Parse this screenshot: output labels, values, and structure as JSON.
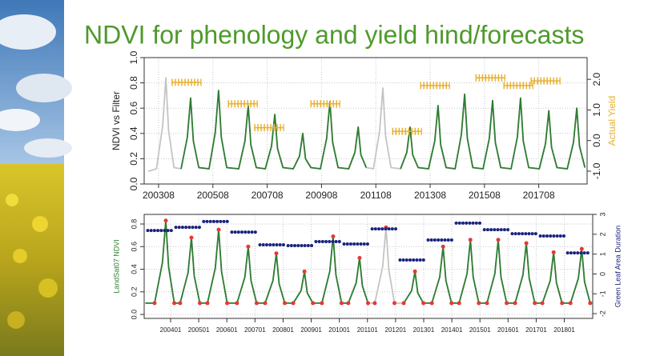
{
  "title": "NDVI for phenology and yield hind/forecasts",
  "chart_data": [
    {
      "type": "line",
      "ylabel": "NDVI vs Filter",
      "y2label": "Actual Yield",
      "ylabel_color": "#222222",
      "y2label_color": "#e8b030",
      "grid": true,
      "xlim": [
        2003.05,
        2019.36
      ],
      "ylim": [
        0,
        1.0
      ],
      "y2lim": [
        -1.42,
        2.71
      ],
      "xticks": [
        {
          "value": 2003.58,
          "label": "200308"
        },
        {
          "value": 2005.58,
          "label": "200508"
        },
        {
          "value": 2007.58,
          "label": "200708"
        },
        {
          "value": 2009.58,
          "label": "200908"
        },
        {
          "value": 2011.58,
          "label": "201108"
        },
        {
          "value": 2013.58,
          "label": "201308"
        },
        {
          "value": 2015.58,
          "label": "201508"
        },
        {
          "value": 2017.58,
          "label": "201708"
        }
      ],
      "yticks": [
        {
          "value": 0,
          "label": "0.0"
        },
        {
          "value": 0.2,
          "label": "0.2"
        },
        {
          "value": 0.4,
          "label": "0.4"
        },
        {
          "value": 0.6,
          "label": "0.6"
        },
        {
          "value": 0.8,
          "label": "0.8"
        },
        {
          "value": 1.0,
          "label": "1.0"
        }
      ],
      "y2ticks": [
        {
          "value": -1,
          "label": "-1.0"
        },
        {
          "value": 0,
          "label": "0.0"
        },
        {
          "value": 1,
          "label": "1.0"
        },
        {
          "value": 2,
          "label": "2.0"
        }
      ],
      "x": [
        2003.2,
        2003.5,
        2003.73,
        2003.85,
        2003.95,
        2004.15,
        2004.41,
        2004.64,
        2004.76,
        2004.86,
        2005.06,
        2005.44,
        2005.67,
        2005.79,
        2005.89,
        2006.09,
        2006.53,
        2006.76,
        2006.88,
        2006.98,
        2007.18,
        2007.51,
        2007.74,
        2007.86,
        2007.96,
        2008.16,
        2008.54,
        2008.77,
        2008.89,
        2008.99,
        2009.19,
        2009.54,
        2009.77,
        2009.89,
        2009.99,
        2010.19,
        2010.58,
        2010.81,
        2010.93,
        2011.03,
        2011.23,
        2011.49,
        2011.72,
        2011.84,
        2011.94,
        2012.14,
        2012.49,
        2012.72,
        2012.84,
        2012.94,
        2013.14,
        2013.52,
        2013.75,
        2013.87,
        2013.97,
        2014.17,
        2014.5,
        2014.73,
        2014.85,
        2014.95,
        2015.15,
        2015.53,
        2015.76,
        2015.88,
        2015.98,
        2016.18,
        2016.56,
        2016.79,
        2016.91,
        2017.01,
        2017.21,
        2017.6,
        2017.83,
        2017.95,
        2018.05,
        2018.25,
        2018.63,
        2018.86,
        2018.98,
        2019.08,
        2019.28
      ],
      "series": [
        {
          "style": "line",
          "color": "#c4c4c4",
          "values": [
            0.1,
            0.12,
            0.46,
            0.84,
            0.42,
            0.13,
            0.12,
            0.37,
            0.68,
            0.34,
            0.13,
            0.12,
            0.41,
            0.74,
            0.37,
            0.13,
            0.12,
            0.34,
            0.62,
            0.31,
            0.13,
            0.12,
            0.3,
            0.55,
            0.28,
            0.13,
            0.12,
            0.22,
            0.4,
            0.2,
            0.13,
            0.12,
            0.36,
            0.65,
            0.33,
            0.13,
            0.12,
            0.25,
            0.45,
            0.23,
            0.13,
            0.12,
            0.42,
            0.76,
            0.38,
            0.13,
            0.12,
            0.25,
            0.45,
            0.23,
            0.13,
            0.12,
            0.34,
            0.62,
            0.31,
            0.13,
            0.12,
            0.39,
            0.71,
            0.36,
            0.13,
            0.12,
            0.36,
            0.66,
            0.33,
            0.13,
            0.12,
            0.37,
            0.68,
            0.34,
            0.13,
            0.12,
            0.32,
            0.58,
            0.29,
            0.13,
            0.12,
            0.33,
            0.6,
            0.3,
            0.13
          ]
        },
        {
          "style": "line",
          "color": "#2e7d32",
          "values": [
            0.1,
            null,
            null,
            null,
            null,
            null,
            0.12,
            0.37,
            0.68,
            0.34,
            0.13,
            0.12,
            0.41,
            0.74,
            0.37,
            0.13,
            0.12,
            0.34,
            0.62,
            0.31,
            0.13,
            0.12,
            0.3,
            0.55,
            0.28,
            0.13,
            0.12,
            0.22,
            0.4,
            0.2,
            0.13,
            0.12,
            0.36,
            0.65,
            0.33,
            0.13,
            0.12,
            0.25,
            0.45,
            0.23,
            0.13,
            null,
            null,
            null,
            null,
            null,
            0.12,
            0.25,
            0.45,
            0.23,
            0.13,
            0.12,
            0.34,
            0.62,
            0.31,
            0.13,
            0.12,
            0.39,
            0.71,
            0.36,
            0.13,
            0.12,
            0.36,
            0.66,
            0.33,
            0.13,
            0.12,
            0.37,
            0.68,
            0.34,
            0.13,
            0.12,
            0.32,
            0.58,
            0.29,
            0.13,
            0.12,
            0.33,
            0.6,
            0.3,
            0.13
          ]
        },
        {
          "style": "crosses",
          "axis": "y2",
          "color": "#e8b030",
          "x": [
            2004.61,
            2006.68,
            2007.65,
            2009.72,
            2012.73,
            2013.76,
            2015.8,
            2016.83,
            2017.83
          ],
          "values": [
            1.9,
            1.2,
            0.42,
            1.2,
            0.3,
            1.8,
            2.05,
            1.8,
            1.95
          ]
        }
      ]
    },
    {
      "type": "line",
      "ylabel": "LandSat07 NDVI",
      "y2label": "Green Leaf Area Duration",
      "ylabel_color": "#2e7d32",
      "y2label_color": "#1a237e",
      "grid": true,
      "xlim": [
        2003.06,
        2019.01
      ],
      "ylim": [
        -0.035,
        0.885
      ],
      "y2lim": [
        -2.24,
        3
      ],
      "xticks": [
        {
          "value": 2004,
          "label": "200401"
        },
        {
          "value": 2005,
          "label": "200501"
        },
        {
          "value": 2006,
          "label": "200601"
        },
        {
          "value": 2007,
          "label": "200701"
        },
        {
          "value": 2008,
          "label": "200801"
        },
        {
          "value": 2009,
          "label": "200901"
        },
        {
          "value": 2010,
          "label": "201001"
        },
        {
          "value": 2011,
          "label": "201101"
        },
        {
          "value": 2012,
          "label": "201201"
        },
        {
          "value": 2013,
          "label": "201301"
        },
        {
          "value": 2014,
          "label": "201401"
        },
        {
          "value": 2015,
          "label": "201501"
        },
        {
          "value": 2016,
          "label": "201601"
        },
        {
          "value": 2017,
          "label": "201701"
        },
        {
          "value": 2018,
          "label": "201801"
        }
      ],
      "yticks": [
        {
          "value": 0,
          "label": "0.0"
        },
        {
          "value": 0.2,
          "label": "0.2"
        },
        {
          "value": 0.4,
          "label": "0.4"
        },
        {
          "value": 0.6,
          "label": "0.6"
        },
        {
          "value": 0.8,
          "label": "0.8"
        }
      ],
      "y2ticks": [
        -2,
        -1,
        0,
        1,
        2,
        3
      ],
      "x": [
        2003.1,
        2003.43,
        2003.71,
        2003.83,
        2003.93,
        2004.13,
        2004.34,
        2004.62,
        2004.74,
        2004.84,
        2005.04,
        2005.31,
        2005.59,
        2005.71,
        2005.81,
        2006.01,
        2006.36,
        2006.64,
        2006.76,
        2006.86,
        2007.06,
        2007.36,
        2007.64,
        2007.76,
        2007.86,
        2008.06,
        2008.36,
        2008.64,
        2008.76,
        2008.86,
        2009.06,
        2009.38,
        2009.66,
        2009.78,
        2009.88,
        2010.08,
        2010.32,
        2010.6,
        2010.72,
        2010.82,
        2011.02,
        2011.26,
        2011.54,
        2011.66,
        2011.76,
        2011.96,
        2012.29,
        2012.57,
        2012.69,
        2012.79,
        2012.99,
        2013.29,
        2013.57,
        2013.69,
        2013.79,
        2013.99,
        2014.26,
        2014.54,
        2014.66,
        2014.76,
        2014.96,
        2015.25,
        2015.53,
        2015.65,
        2015.75,
        2015.95,
        2016.25,
        2016.53,
        2016.65,
        2016.75,
        2016.95,
        2017.22,
        2017.5,
        2017.62,
        2017.72,
        2017.92,
        2018.22,
        2018.5,
        2018.62,
        2018.72,
        2018.92
      ],
      "series": [
        {
          "style": "line",
          "color": "#c4c4c4",
          "values": [
            0.1,
            0.1,
            0.46,
            0.83,
            0.42,
            0.1,
            0.1,
            0.37,
            0.68,
            0.34,
            0.1,
            0.1,
            0.41,
            0.75,
            0.38,
            0.1,
            0.1,
            0.33,
            0.6,
            0.3,
            0.1,
            0.1,
            0.3,
            0.54,
            0.27,
            0.1,
            0.1,
            0.21,
            0.38,
            0.19,
            0.1,
            0.1,
            0.38,
            0.69,
            0.35,
            0.1,
            0.1,
            0.28,
            0.5,
            0.25,
            0.1,
            0.1,
            0.42,
            0.77,
            0.39,
            0.1,
            0.1,
            0.21,
            0.38,
            0.19,
            0.1,
            0.1,
            0.33,
            0.6,
            0.3,
            0.1,
            0.1,
            0.36,
            0.66,
            0.33,
            0.1,
            0.1,
            0.36,
            0.66,
            0.33,
            0.1,
            0.1,
            0.35,
            0.63,
            0.32,
            0.1,
            0.1,
            0.3,
            0.55,
            0.28,
            0.1,
            0.1,
            0.32,
            0.58,
            0.29,
            0.1
          ]
        },
        {
          "style": "line",
          "color": "#2e7d32",
          "values": [
            0.1,
            0.1,
            0.46,
            0.83,
            0.42,
            0.1,
            0.1,
            0.37,
            0.68,
            0.34,
            0.1,
            0.1,
            0.41,
            0.75,
            0.38,
            0.1,
            0.1,
            0.33,
            0.6,
            0.3,
            0.1,
            0.1,
            0.3,
            0.54,
            0.27,
            0.1,
            0.1,
            0.21,
            0.38,
            0.19,
            0.1,
            0.1,
            0.38,
            0.69,
            0.35,
            0.1,
            0.1,
            0.28,
            0.5,
            0.25,
            0.1,
            null,
            null,
            null,
            null,
            null,
            0.1,
            0.21,
            0.38,
            0.19,
            0.1,
            0.1,
            0.33,
            0.6,
            0.3,
            0.1,
            0.1,
            0.36,
            0.66,
            0.33,
            0.1,
            0.1,
            0.36,
            0.66,
            0.33,
            0.1,
            0.1,
            0.35,
            0.63,
            0.32,
            0.1,
            0.1,
            0.3,
            0.55,
            0.28,
            0.1,
            0.1,
            0.32,
            0.58,
            0.29,
            0.1
          ]
        },
        {
          "style": "points",
          "color": "#e53935",
          "x": [
            2003.43,
            2003.83,
            2004.13,
            2004.34,
            2004.74,
            2005.04,
            2005.31,
            2005.71,
            2006.01,
            2006.36,
            2006.76,
            2007.06,
            2007.36,
            2007.76,
            2008.06,
            2008.36,
            2008.76,
            2009.06,
            2009.38,
            2009.78,
            2010.08,
            2010.32,
            2010.72,
            2011.02,
            2011.26,
            2011.66,
            2011.96,
            2012.29,
            2012.69,
            2012.99,
            2013.29,
            2013.69,
            2013.99,
            2014.26,
            2014.66,
            2014.96,
            2015.25,
            2015.65,
            2015.95,
            2016.25,
            2016.65,
            2016.95,
            2017.22,
            2017.62,
            2017.92,
            2018.22,
            2018.62,
            2018.92
          ],
          "values": [
            0.1,
            0.83,
            0.1,
            0.1,
            0.68,
            0.1,
            0.1,
            0.75,
            0.1,
            0.1,
            0.6,
            0.1,
            0.1,
            0.54,
            0.1,
            0.1,
            0.38,
            0.1,
            0.1,
            0.69,
            0.1,
            0.1,
            0.5,
            0.1,
            0.1,
            0.77,
            0.1,
            0.1,
            0.38,
            0.1,
            0.1,
            0.6,
            0.1,
            0.1,
            0.66,
            0.1,
            0.1,
            0.66,
            0.1,
            0.1,
            0.63,
            0.1,
            0.1,
            0.55,
            0.1,
            0.1,
            0.58,
            0.1
          ]
        },
        {
          "style": "dots",
          "axis": "y2",
          "color": "#1a237e",
          "x": [
            2003.63,
            2004.63,
            2005.62,
            2006.62,
            2007.62,
            2008.62,
            2009.61,
            2010.61,
            2011.61,
            2012.6,
            2013.6,
            2014.6,
            2015.6,
            2016.59,
            2017.59,
            2018.56
          ],
          "values": [
            2.19,
            2.35,
            2.64,
            2.11,
            1.47,
            1.43,
            1.63,
            1.51,
            2.27,
            0.7,
            1.71,
            2.56,
            2.23,
            2.03,
            1.91,
            1.06
          ]
        }
      ]
    }
  ]
}
